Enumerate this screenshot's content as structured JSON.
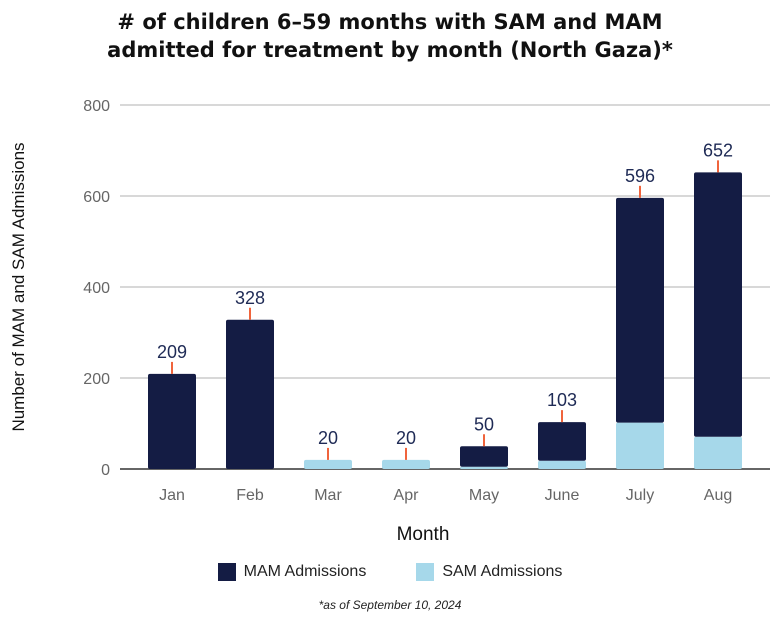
{
  "chart_data": {
    "type": "bar",
    "stacked": true,
    "title": "# of children 6–59 months with SAM and MAM admitted for treatment by month (North Gaza)*",
    "title_lines": [
      "# of children 6–59 months with SAM and MAM",
      "admitted for treatment by month (North Gaza)*"
    ],
    "xlabel": "Month",
    "ylabel": "Number of MAM and SAM Admissions",
    "ylim": [
      0,
      800
    ],
    "yticks": [
      0,
      200,
      400,
      600,
      800
    ],
    "grid": true,
    "categories": [
      "Jan",
      "Feb",
      "Mar",
      "Apr",
      "May",
      "June",
      "July",
      "Aug"
    ],
    "series": [
      {
        "name": "SAM Admissions",
        "color": "#a6d8ea",
        "values": [
          0,
          0,
          20,
          20,
          5,
          18,
          102,
          71
        ]
      },
      {
        "name": "MAM Admissions",
        "color": "#141c44",
        "values": [
          209,
          328,
          0,
          0,
          45,
          85,
          494,
          581
        ]
      }
    ],
    "totals": [
      209,
      328,
      20,
      20,
      50,
      103,
      596,
      652
    ],
    "legend_position": "bottom",
    "footnote": "*as of September 10, 2024"
  }
}
